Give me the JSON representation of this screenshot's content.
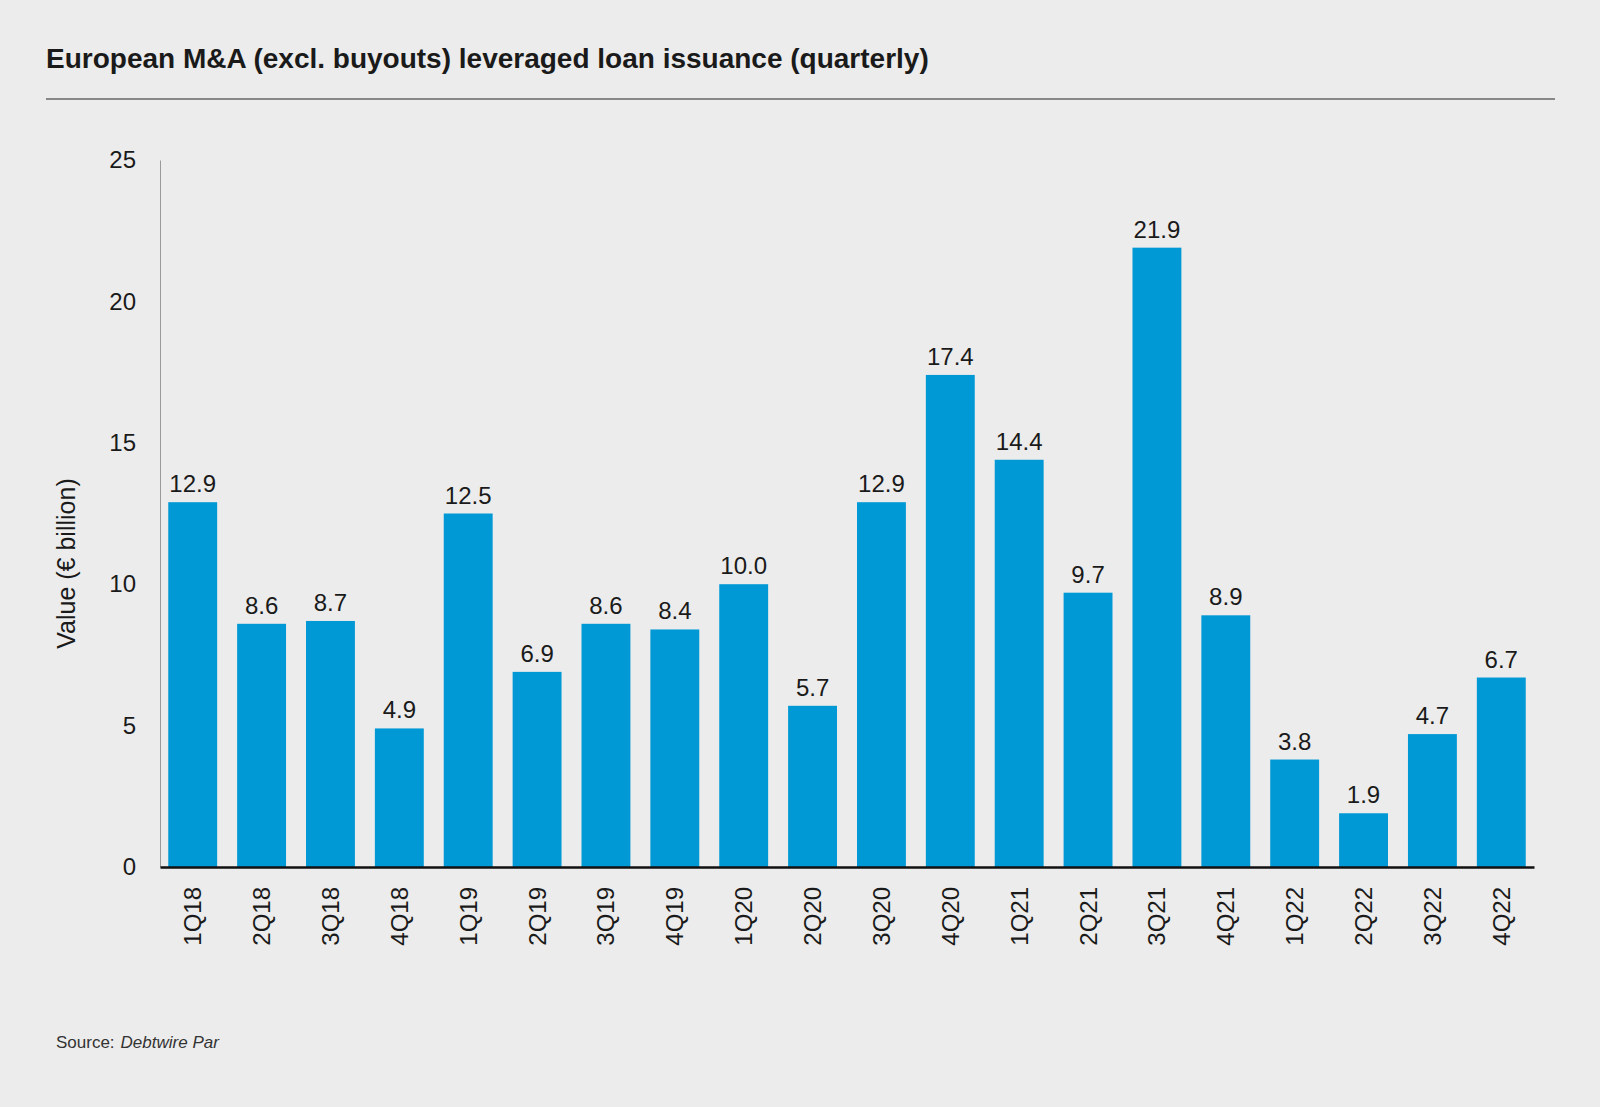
{
  "chart_data": {
    "type": "bar",
    "title": "European M&A (excl. buyouts) leveraged loan issuance (quarterly)",
    "y_label": "Value (€ billion)",
    "source_label": "Source:",
    "source": "Debtwire Par",
    "categories": [
      "1Q18",
      "2Q18",
      "3Q18",
      "4Q18",
      "1Q19",
      "2Q19",
      "3Q19",
      "4Q19",
      "1Q20",
      "2Q20",
      "3Q20",
      "4Q20",
      "1Q21",
      "2Q21",
      "3Q21",
      "4Q21",
      "1Q22",
      "2Q22",
      "3Q22",
      "4Q22"
    ],
    "values": [
      12.9,
      8.6,
      8.7,
      4.9,
      12.5,
      6.9,
      8.6,
      8.4,
      10.0,
      5.7,
      12.9,
      17.4,
      14.4,
      9.7,
      21.9,
      8.9,
      3.8,
      1.9,
      4.7,
      6.7
    ],
    "value_labels": [
      "12.9",
      "8.6",
      "8.7",
      "4.9",
      "12.5",
      "6.9",
      "8.6",
      "8.4",
      "10.0",
      "5.7",
      "12.9",
      "17.4",
      "14.4",
      "9.7",
      "21.9",
      "8.9",
      "3.8",
      "1.9",
      "4.7",
      "6.7"
    ],
    "color": "#0099d5",
    "ylim": [
      0,
      25
    ],
    "yticks": [
      0,
      5,
      10,
      15,
      20,
      25
    ],
    "grid": false,
    "data_labels": true
  }
}
